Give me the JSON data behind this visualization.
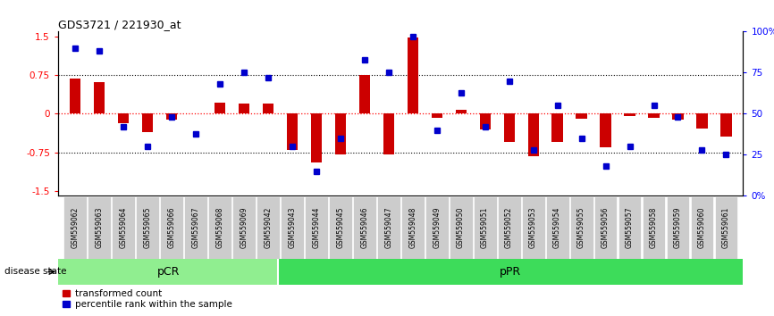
{
  "title": "GDS3721 / 221930_at",
  "samples": [
    "GSM559062",
    "GSM559063",
    "GSM559064",
    "GSM559065",
    "GSM559066",
    "GSM559067",
    "GSM559068",
    "GSM559069",
    "GSM559042",
    "GSM559043",
    "GSM559044",
    "GSM559045",
    "GSM559046",
    "GSM559047",
    "GSM559048",
    "GSM559049",
    "GSM559050",
    "GSM559051",
    "GSM559052",
    "GSM559053",
    "GSM559054",
    "GSM559055",
    "GSM559056",
    "GSM559057",
    "GSM559058",
    "GSM559059",
    "GSM559060",
    "GSM559061"
  ],
  "bar_values": [
    0.68,
    0.62,
    -0.18,
    -0.35,
    -0.12,
    0.0,
    0.22,
    0.2,
    0.2,
    -0.7,
    -0.95,
    -0.8,
    0.75,
    -0.8,
    1.48,
    -0.08,
    0.08,
    -0.3,
    -0.55,
    -0.82,
    -0.55,
    -0.1,
    -0.65,
    -0.05,
    -0.08,
    -0.12,
    -0.28,
    -0.45
  ],
  "pct_values": [
    90,
    88,
    42,
    30,
    48,
    38,
    68,
    75,
    72,
    30,
    15,
    35,
    83,
    75,
    97,
    40,
    63,
    42,
    70,
    28,
    55,
    35,
    18,
    30,
    55,
    48,
    28,
    25
  ],
  "pcr_count": 9,
  "ppr_count": 19,
  "bar_color": "#cc0000",
  "pct_color": "#0000cc",
  "pcr_color": "#90ee90",
  "ppr_color": "#3ddc5a",
  "pcr_label": "pCR",
  "ppr_label": "pPR",
  "disease_state_label": "disease state",
  "legend_bar": "transformed count",
  "legend_pct": "percentile rank within the sample",
  "ylim": [
    -1.6,
    1.6
  ],
  "yticks_left": [
    -1.5,
    -0.75,
    0.0,
    0.75,
    1.5
  ],
  "ytick_labels_left": [
    "-1.5",
    "-0.75",
    "0",
    "0.75",
    "1.5"
  ],
  "ytick_labels_right": [
    "0%",
    "25",
    "50",
    "75",
    "100%"
  ],
  "pct_right_vals": [
    0,
    25,
    50,
    75,
    100
  ],
  "bg_color": "#ffffff",
  "gray_tick_bg": "#cccccc"
}
